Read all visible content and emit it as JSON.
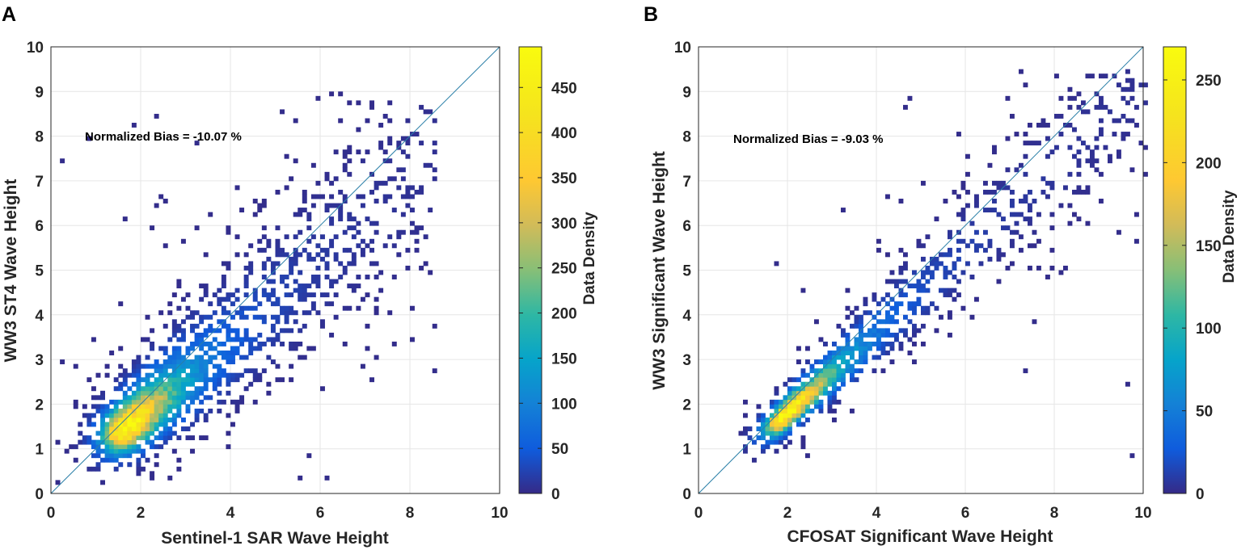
{
  "chart_data": [
    {
      "type": "heatmap",
      "panel_label": "A",
      "title": "",
      "xlabel": "Sentinel-1 SAR Wave Height",
      "ylabel": "WW3 ST4 Wave Height",
      "xlim": [
        0,
        10
      ],
      "ylim": [
        0,
        10
      ],
      "x_ticks": [
        0,
        2,
        4,
        6,
        8,
        10
      ],
      "y_ticks": [
        0,
        1,
        2,
        3,
        4,
        5,
        6,
        7,
        8,
        9,
        10
      ],
      "grid": true,
      "reference_line": "y = x",
      "annotation": "Normalized Bias = -10.07 %",
      "colorbar": {
        "label": "Data Density",
        "range": [
          0,
          495
        ],
        "ticks": [
          0,
          50,
          100,
          150,
          200,
          250,
          300,
          350,
          400,
          450
        ]
      },
      "density_model": {
        "peak_location": [
          1.65,
          1.45
        ],
        "peak_value": 495,
        "slope": 0.88,
        "spread_along": 1.05,
        "spread_across": 0.45,
        "x_range": [
          0.1,
          8.5
        ],
        "y_range": [
          0.2,
          8.9
        ]
      }
    },
    {
      "type": "heatmap",
      "panel_label": "B",
      "title": "",
      "xlabel": "CFOSAT Significant Wave Height",
      "ylabel": "WW3 Significant Wave Height",
      "xlim": [
        0,
        10
      ],
      "ylim": [
        0,
        10
      ],
      "x_ticks": [
        0,
        2,
        4,
        6,
        8,
        10
      ],
      "y_ticks": [
        0,
        1,
        2,
        3,
        4,
        5,
        6,
        7,
        8,
        9,
        10
      ],
      "grid": true,
      "reference_line": "y = x",
      "annotation": "Normalized Bias = -9.03 %",
      "colorbar": {
        "label": "Data Density",
        "range": [
          0,
          270
        ],
        "ticks": [
          0,
          50,
          100,
          150,
          200,
          250
        ]
      },
      "density_model": {
        "peak_location": [
          1.95,
          1.75
        ],
        "peak_value": 270,
        "slope": 0.92,
        "spread_along": 1.1,
        "spread_across": 0.25,
        "x_range": [
          0.8,
          10
        ],
        "y_range": [
          0.7,
          9.4
        ]
      }
    }
  ]
}
